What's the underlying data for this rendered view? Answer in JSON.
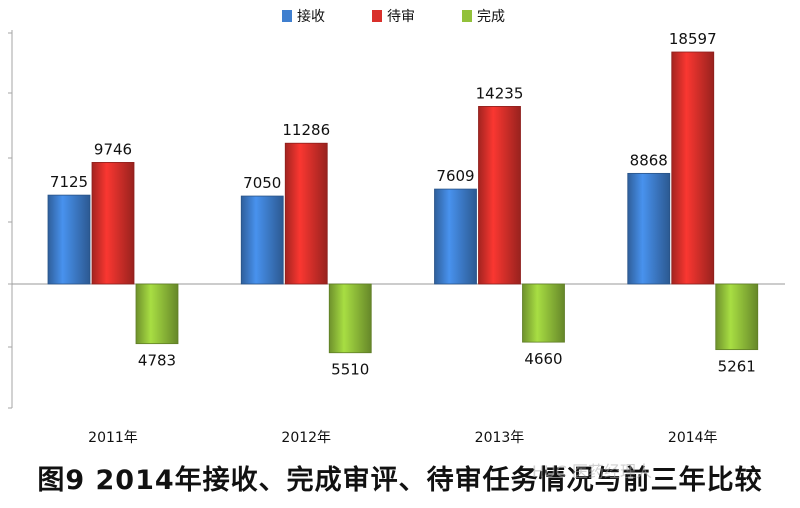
{
  "chart_data": {
    "type": "bar",
    "categories": [
      "2011年",
      "2012年",
      "2013年",
      "2014年"
    ],
    "series": [
      {
        "name": "接收",
        "values": [
          7125,
          7050,
          7609,
          8868
        ],
        "color": "#3f7fcf"
      },
      {
        "name": "待审",
        "values": [
          9746,
          11286,
          14235,
          18597
        ],
        "color": "#d9302b"
      },
      {
        "name": "完成",
        "values": [
          -4783,
          -5510,
          -4660,
          -5261
        ],
        "color": "#92c13a"
      }
    ],
    "data_labels": [
      [
        "7125",
        "7050",
        "7609",
        "8868"
      ],
      [
        "9746",
        "11286",
        "14235",
        "18597"
      ],
      [
        "4783",
        "5510",
        "4660",
        "5261"
      ]
    ],
    "ylim": [
      -10000,
      20000
    ],
    "grid": false,
    "legend": "top-center"
  },
  "caption": "图9  2014年接收、完成审评、待审任务情况与前三年比较",
  "watermark": "HUC 医药经理人"
}
